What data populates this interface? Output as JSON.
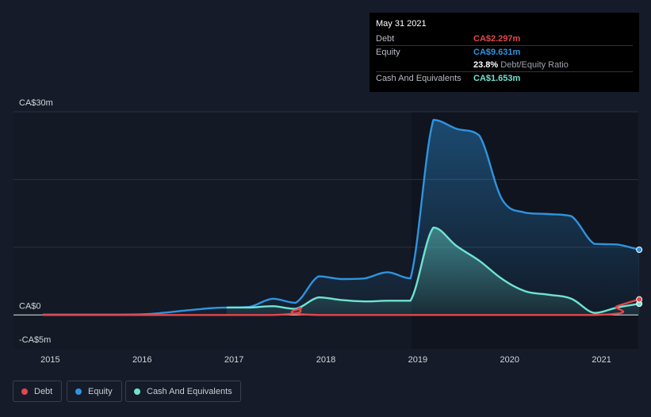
{
  "tooltip": {
    "date": "May 31 2021",
    "rows": [
      {
        "label": "Debt",
        "value": "CA$2.297m",
        "color": "#e2474b"
      },
      {
        "label": "Equity",
        "value": "CA$9.631m",
        "color": "#2e94e0"
      },
      {
        "label": "",
        "value": "23.8%",
        "suffix": "Debt/Equity Ratio"
      },
      {
        "label": "Cash And Equivalents",
        "value": "CA$1.653m",
        "color": "#6fe3d2"
      }
    ]
  },
  "legend": [
    {
      "label": "Debt",
      "color": "#e2474b"
    },
    {
      "label": "Equity",
      "color": "#2e94e0"
    },
    {
      "label": "Cash And Equivalents",
      "color": "#6fe3d2"
    }
  ],
  "chart_data": {
    "type": "area",
    "y_axis_labels": [
      "CA$30m",
      "CA$0",
      "-CA$5m"
    ],
    "ylim": [
      -5,
      30
    ],
    "x_ticks": [
      {
        "label": "2015",
        "x": 2015.0
      },
      {
        "label": "2016",
        "x": 2016.0
      },
      {
        "label": "2017",
        "x": 2017.0
      },
      {
        "label": "2018",
        "x": 2018.0
      },
      {
        "label": "2019",
        "x": 2019.0
      },
      {
        "label": "2020",
        "x": 2020.0
      },
      {
        "label": "2021",
        "x": 2021.0
      }
    ],
    "xlim": [
      2014.6,
      2021.4
    ],
    "grid": true,
    "legend_position": "bottom-left",
    "series": [
      {
        "name": "Equity",
        "color": "#2e94e0",
        "points": [
          [
            2014.92,
            0.05
          ],
          [
            2015.5,
            0.05
          ],
          [
            2016.0,
            0.1
          ],
          [
            2016.25,
            0.35
          ],
          [
            2016.5,
            0.7
          ],
          [
            2016.75,
            1.0
          ],
          [
            2016.92,
            1.1
          ],
          [
            2017.17,
            1.2
          ],
          [
            2017.42,
            2.4
          ],
          [
            2017.67,
            1.8
          ],
          [
            2017.92,
            5.7
          ],
          [
            2018.17,
            5.3
          ],
          [
            2018.42,
            5.4
          ],
          [
            2018.67,
            6.3
          ],
          [
            2018.92,
            5.4
          ],
          [
            2019.17,
            28.8
          ],
          [
            2019.42,
            27.5
          ],
          [
            2019.67,
            26.5
          ],
          [
            2019.92,
            17.0
          ],
          [
            2020.17,
            15.1
          ],
          [
            2020.42,
            14.9
          ],
          [
            2020.67,
            14.6
          ],
          [
            2020.92,
            10.5
          ],
          [
            2021.17,
            10.4
          ],
          [
            2021.41,
            9.631
          ]
        ]
      },
      {
        "name": "Cash And Equivalents",
        "color": "#6fe3d2",
        "points": [
          [
            2016.92,
            1.1
          ],
          [
            2017.17,
            1.1
          ],
          [
            2017.42,
            1.3
          ],
          [
            2017.67,
            0.9
          ],
          [
            2017.92,
            2.6
          ],
          [
            2018.17,
            2.2
          ],
          [
            2018.42,
            2.0
          ],
          [
            2018.67,
            2.1
          ],
          [
            2018.92,
            2.1
          ],
          [
            2019.17,
            12.9
          ],
          [
            2019.42,
            10.2
          ],
          [
            2019.67,
            8.0
          ],
          [
            2019.92,
            5.3
          ],
          [
            2020.17,
            3.5
          ],
          [
            2020.42,
            3.0
          ],
          [
            2020.67,
            2.4
          ],
          [
            2020.92,
            0.3
          ],
          [
            2021.17,
            1.1
          ],
          [
            2021.41,
            1.653
          ]
        ]
      },
      {
        "name": "Debt",
        "color": "#e2474b",
        "points": [
          [
            2014.92,
            0.0
          ],
          [
            2017.42,
            0.0
          ],
          [
            2017.72,
            1.0
          ],
          [
            2017.92,
            0.0
          ],
          [
            2020.92,
            0.0
          ],
          [
            2021.17,
            1.3
          ],
          [
            2021.41,
            2.297
          ]
        ]
      }
    ]
  }
}
